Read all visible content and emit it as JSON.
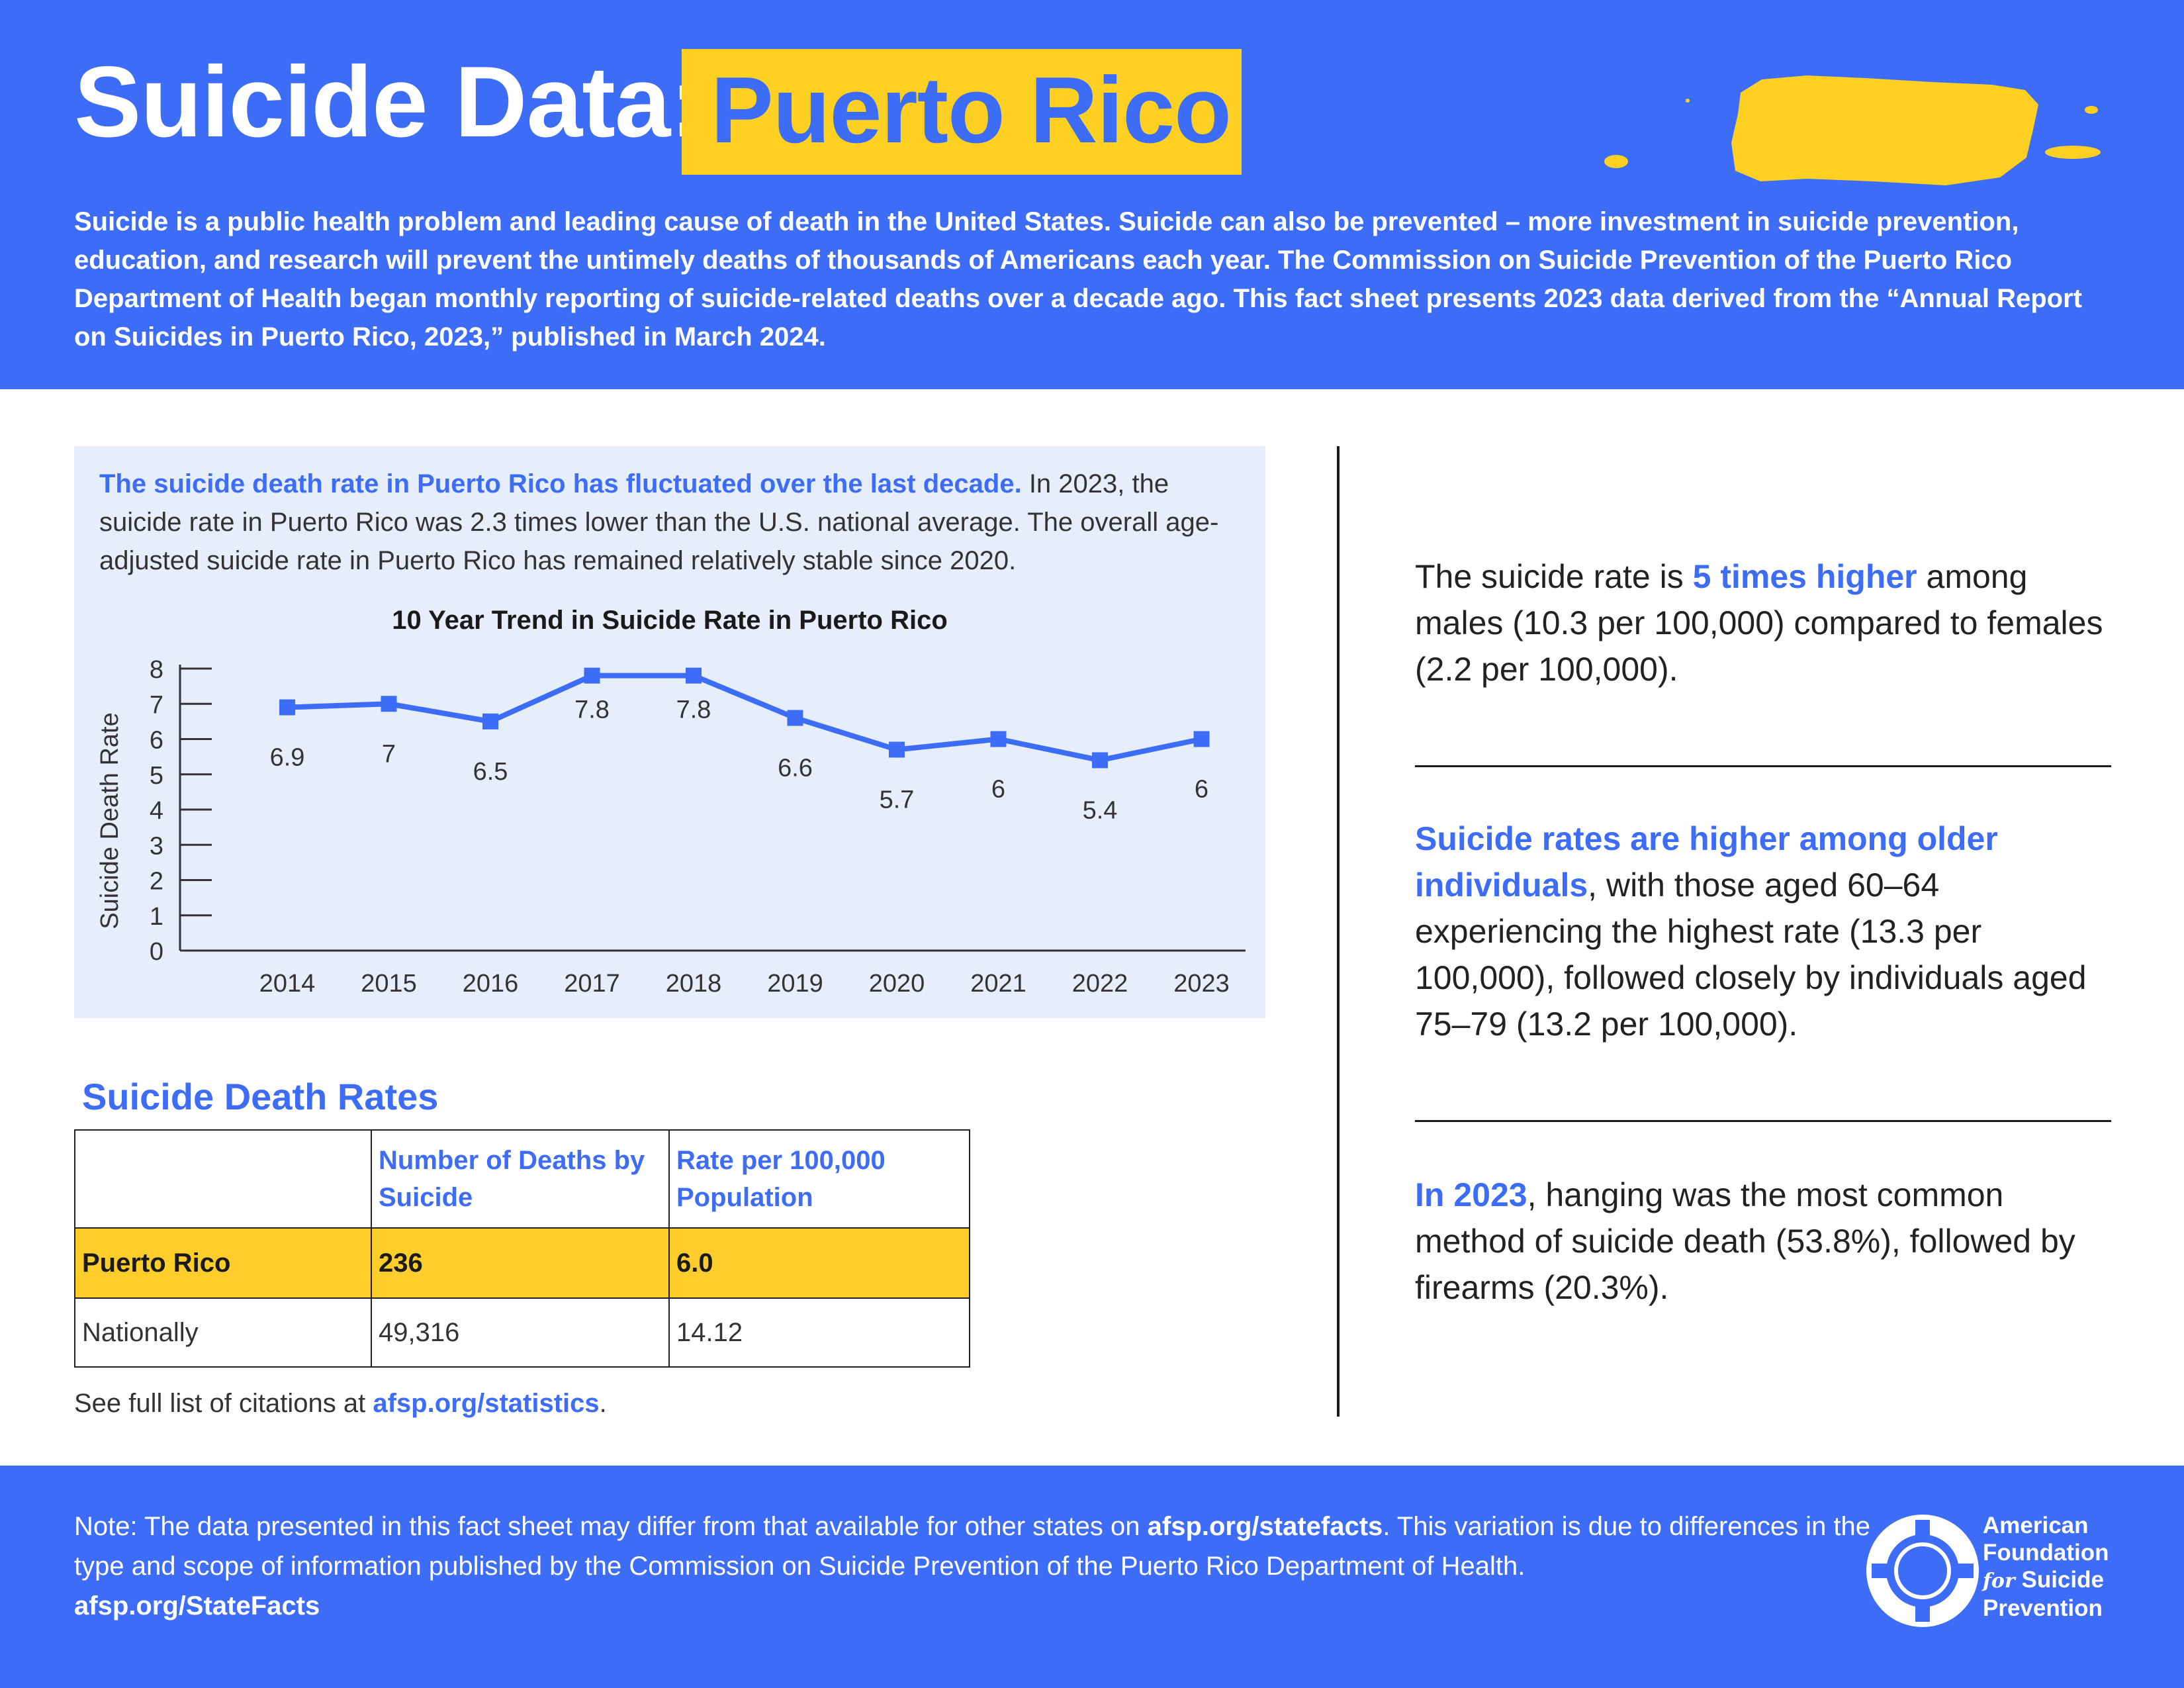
{
  "header": {
    "title_prefix": "Suicide Data:",
    "title_state": "Puerto Rico",
    "intro": "Suicide is a public health problem and leading cause of death in the United States. Suicide can also be prevented – more investment in suicide prevention, education, and research will prevent the untimely deaths of thousands of Americans each year. The Commission on Suicide Prevention of the Puerto Rico Department of Health began monthly reporting of suicide-related deaths over a decade ago. This fact sheet presents 2023 data derived from the “Annual Report on Suicides in Puerto Rico, 2023,” published in March 2024."
  },
  "trend_panel": {
    "lead": "The suicide death rate in Puerto Rico has fluctuated over the last decade.",
    "body": " In 2023, the suicide rate in Puerto Rico was 2.3 times lower than the U.S. national average. The overall age-adjusted suicide rate in Puerto Rico has remained relatively stable since 2020."
  },
  "chart_data": {
    "type": "line",
    "title": "10 Year Trend in Suicide Rate in Puerto Rico",
    "xlabel": "",
    "ylabel": "Suicide Death Rate",
    "x": [
      "2014",
      "2015",
      "2016",
      "2017",
      "2018",
      "2019",
      "2020",
      "2021",
      "2022",
      "2023"
    ],
    "values": [
      6.9,
      7,
      6.5,
      7.8,
      7.8,
      6.6,
      5.7,
      6,
      5.4,
      6
    ],
    "data_labels": [
      "6.9",
      "7",
      "6.5",
      "7.8",
      "7.8",
      "6.6",
      "5.7",
      "6",
      "5.4",
      "6"
    ],
    "yticks": [
      "0",
      "1",
      "2",
      "3",
      "4",
      "5",
      "6",
      "7",
      "8"
    ],
    "ylim": [
      0,
      8
    ],
    "grid": false,
    "line_color": "#3d6cf7"
  },
  "rates_table": {
    "title": "Suicide Death Rates",
    "headers": [
      "",
      "Number of Deaths by Suicide",
      "Rate per 100,000 Population"
    ],
    "rows": [
      [
        "Puerto Rico",
        "236",
        "6.0"
      ],
      [
        "Nationally",
        "49,316",
        "14.12"
      ]
    ]
  },
  "citations": {
    "prefix": "See full list of citations at ",
    "link": "afsp.org/statistics",
    "suffix": "."
  },
  "facts": {
    "fact1": {
      "pre": "The suicide rate is ",
      "highlight": "5 times higher",
      "post": " among males (10.3 per 100,000) compared to females (2.2 per 100,000)."
    },
    "fact2": {
      "pre": "",
      "highlight": "Suicide rates are higher among older individuals",
      "post": ", with those aged 60–64 experiencing the highest rate (13.3 per 100,000), followed closely by individuals aged 75–79 (13.2 per 100,000)."
    },
    "fact3": {
      "pre": "",
      "highlight": "In 2023",
      "post": ", hanging was the most common method of suicide death (53.8%), followed by firearms (20.3%)."
    }
  },
  "footer": {
    "note_pre": "Note: The data presented in this fact sheet may differ from that available for other states on ",
    "note_link": "afsp.org/statefacts",
    "note_post": ". This variation is due to differences in the type and scope of information published by the Commission on Suicide Prevention of the Puerto Rico Department of Health.",
    "statefacts": "afsp.org/StateFacts",
    "logo": {
      "line1": "American",
      "line2": "Foundation",
      "for": "for",
      "line3": "Suicide",
      "line4": "Prevention"
    }
  },
  "colors": {
    "brand_blue": "#3d6cf7",
    "brand_yellow": "#fdd023",
    "panel_bg": "#e6eefc"
  },
  "icons": {
    "map": "puerto-rico-map-icon",
    "logo": "lifebuoy-icon"
  }
}
